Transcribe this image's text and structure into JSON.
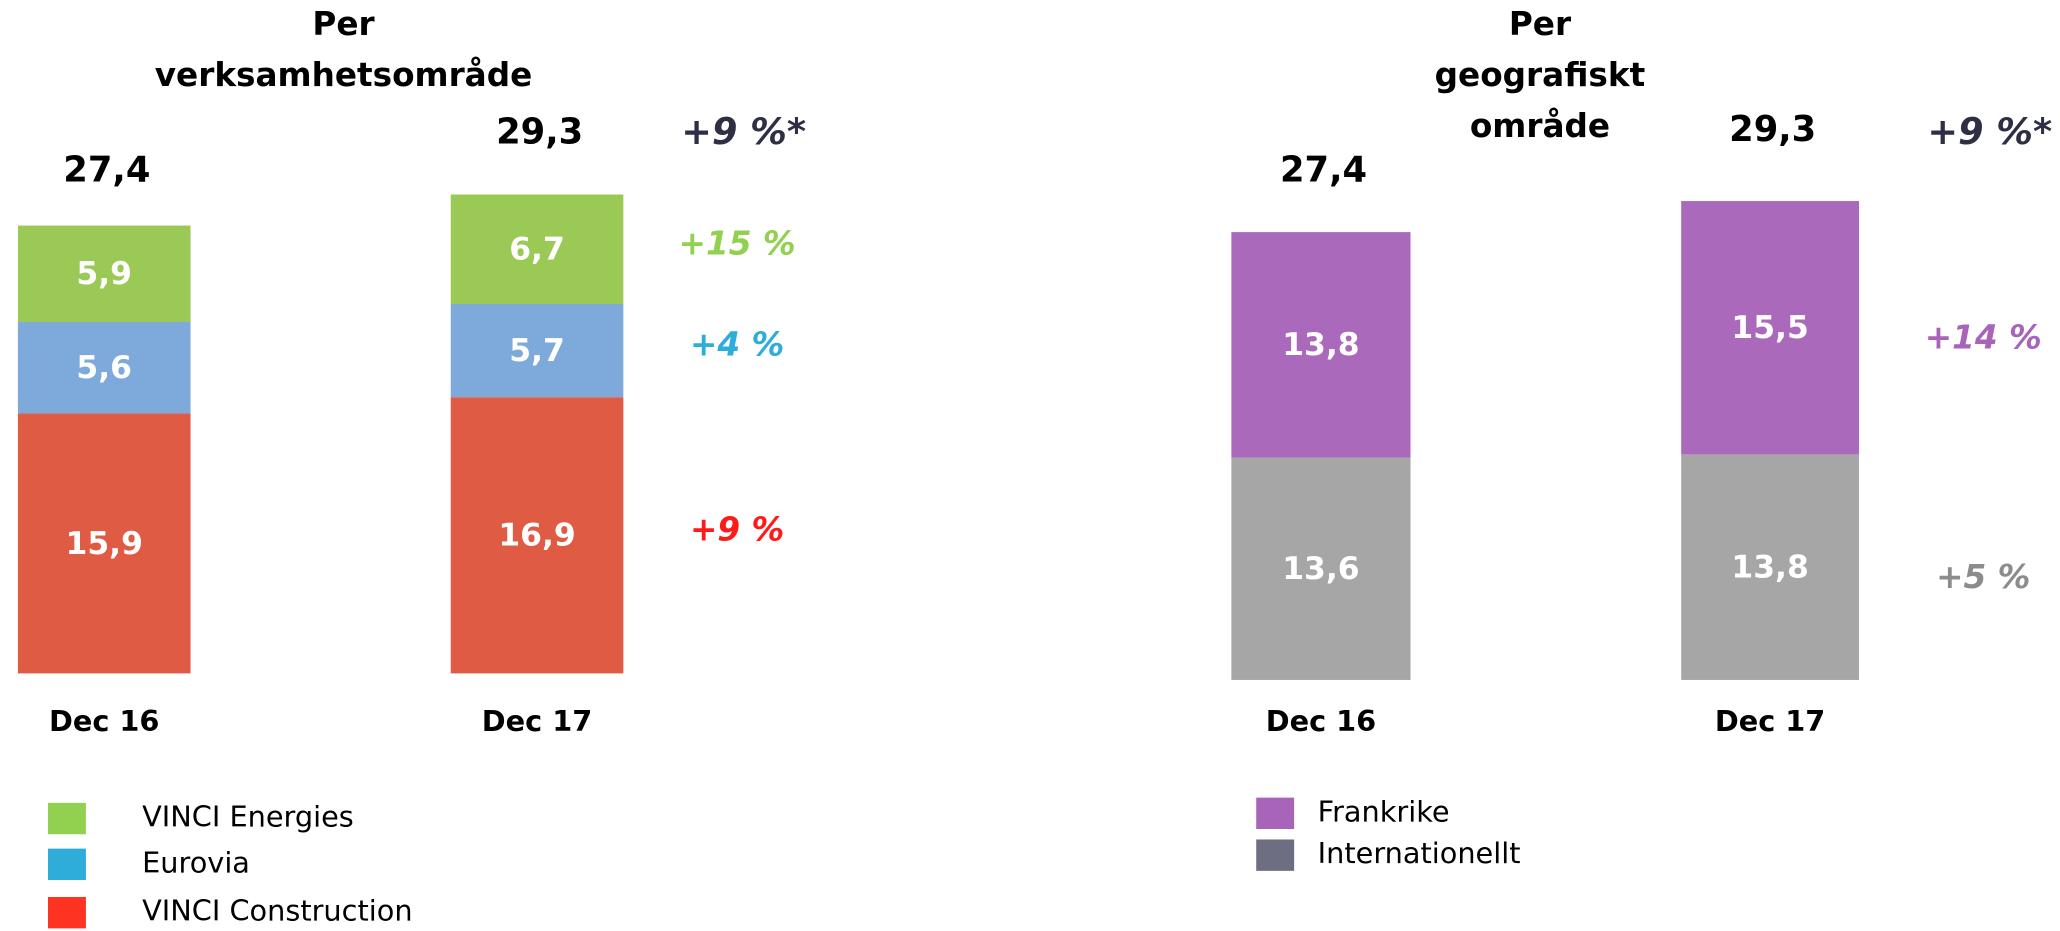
{
  "chart_data": [
    {
      "type": "stacked-bar",
      "title": [
        "Per",
        "verksamhetsområde"
      ],
      "categories": [
        "Dec 16",
        "Dec 17"
      ],
      "totals": [
        27.4,
        29.3
      ],
      "total_labels": [
        "27,4",
        "29,3"
      ],
      "growth": "+9 %*",
      "growth_color": "#2e2f45",
      "series": [
        {
          "name": "VINCI Construction",
          "color": "#e05b44",
          "legend_color": "#ff3322",
          "values": [
            15.9,
            16.9
          ],
          "value_labels": [
            "15,9",
            "16,9"
          ],
          "growth": "+9 %",
          "growth_color": "#ff1a1a"
        },
        {
          "name": "Eurovia",
          "color": "#7eaadb",
          "legend_color": "#2eadd9",
          "values": [
            5.6,
            5.7
          ],
          "value_labels": [
            "5,6",
            "5,7"
          ],
          "growth": "+4 %",
          "growth_color": "#2eadd9"
        },
        {
          "name": "VINCI Energies",
          "color": "#9bc955",
          "legend_color": "#92d050",
          "values": [
            5.9,
            6.7
          ],
          "value_labels": [
            "5,9",
            "6,7"
          ],
          "growth": "+15 %",
          "growth_color": "#92d050"
        }
      ]
    },
    {
      "type": "stacked-bar",
      "title": [
        "Per",
        "geografiskt",
        "område"
      ],
      "categories": [
        "Dec 16",
        "Dec 17"
      ],
      "totals": [
        27.4,
        29.3
      ],
      "total_labels": [
        "27,4",
        "29,3"
      ],
      "growth": "+9 %*",
      "growth_color": "#2e2f45",
      "series": [
        {
          "name": "Internationellt",
          "color": "#a6a6a6",
          "legend_color": "#6e6e82",
          "values": [
            13.6,
            13.8
          ],
          "value_labels": [
            "13,6",
            "13,8"
          ],
          "growth": "+5 %",
          "growth_color": "#8c8c8c"
        },
        {
          "name": "Frankrike",
          "color": "#ab69bb",
          "legend_color": "#a864b9",
          "values": [
            13.8,
            15.5
          ],
          "value_labels": [
            "13,8",
            "15,5"
          ],
          "growth": "+14 %",
          "growth_color": "#a864b9"
        }
      ]
    }
  ]
}
